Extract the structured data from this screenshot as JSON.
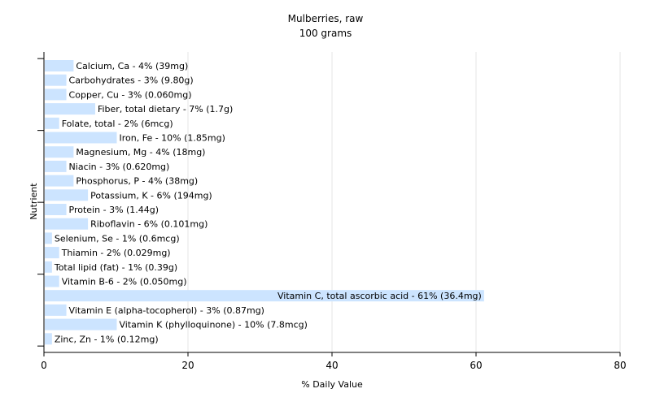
{
  "chart_data": {
    "type": "bar",
    "orientation": "horizontal",
    "title": "Mulberries, raw",
    "subtitle": "100 grams",
    "xlabel": "% Daily Value",
    "ylabel": "Nutrient",
    "xlim": [
      0,
      80
    ],
    "xticks": [
      "0",
      "20",
      "40",
      "60",
      "80"
    ],
    "grid": true,
    "bar_color": "#cce4ff",
    "grid_color": "#e6e6e6",
    "axis_color": "#000000",
    "categories": [
      "Calcium, Ca - 4% (39mg)",
      "Carbohydrates - 3% (9.80g)",
      "Copper, Cu - 3% (0.060mg)",
      "Fiber, total dietary - 7% (1.7g)",
      "Folate, total - 2% (6mcg)",
      "Iron, Fe - 10% (1.85mg)",
      "Magnesium, Mg - 4% (18mg)",
      "Niacin - 3% (0.620mg)",
      "Phosphorus, P - 4% (38mg)",
      "Potassium, K - 6% (194mg)",
      "Protein - 3% (1.44g)",
      "Riboflavin - 6% (0.101mg)",
      "Selenium, Se - 1% (0.6mcg)",
      "Thiamin - 2% (0.029mg)",
      "Total lipid (fat) - 1% (0.39g)",
      "Vitamin B-6 - 2% (0.050mg)",
      "Vitamin C, total ascorbic acid - 61% (36.4mg)",
      "Vitamin E (alpha-tocopherol) - 3% (0.87mg)",
      "Vitamin K (phylloquinone) - 10% (7.8mcg)",
      "Zinc, Zn - 1% (0.12mg)"
    ],
    "values": [
      4,
      3,
      3,
      7,
      2,
      10,
      4,
      3,
      4,
      6,
      3,
      6,
      1,
      2,
      1,
      2,
      61,
      3,
      10,
      1
    ]
  }
}
